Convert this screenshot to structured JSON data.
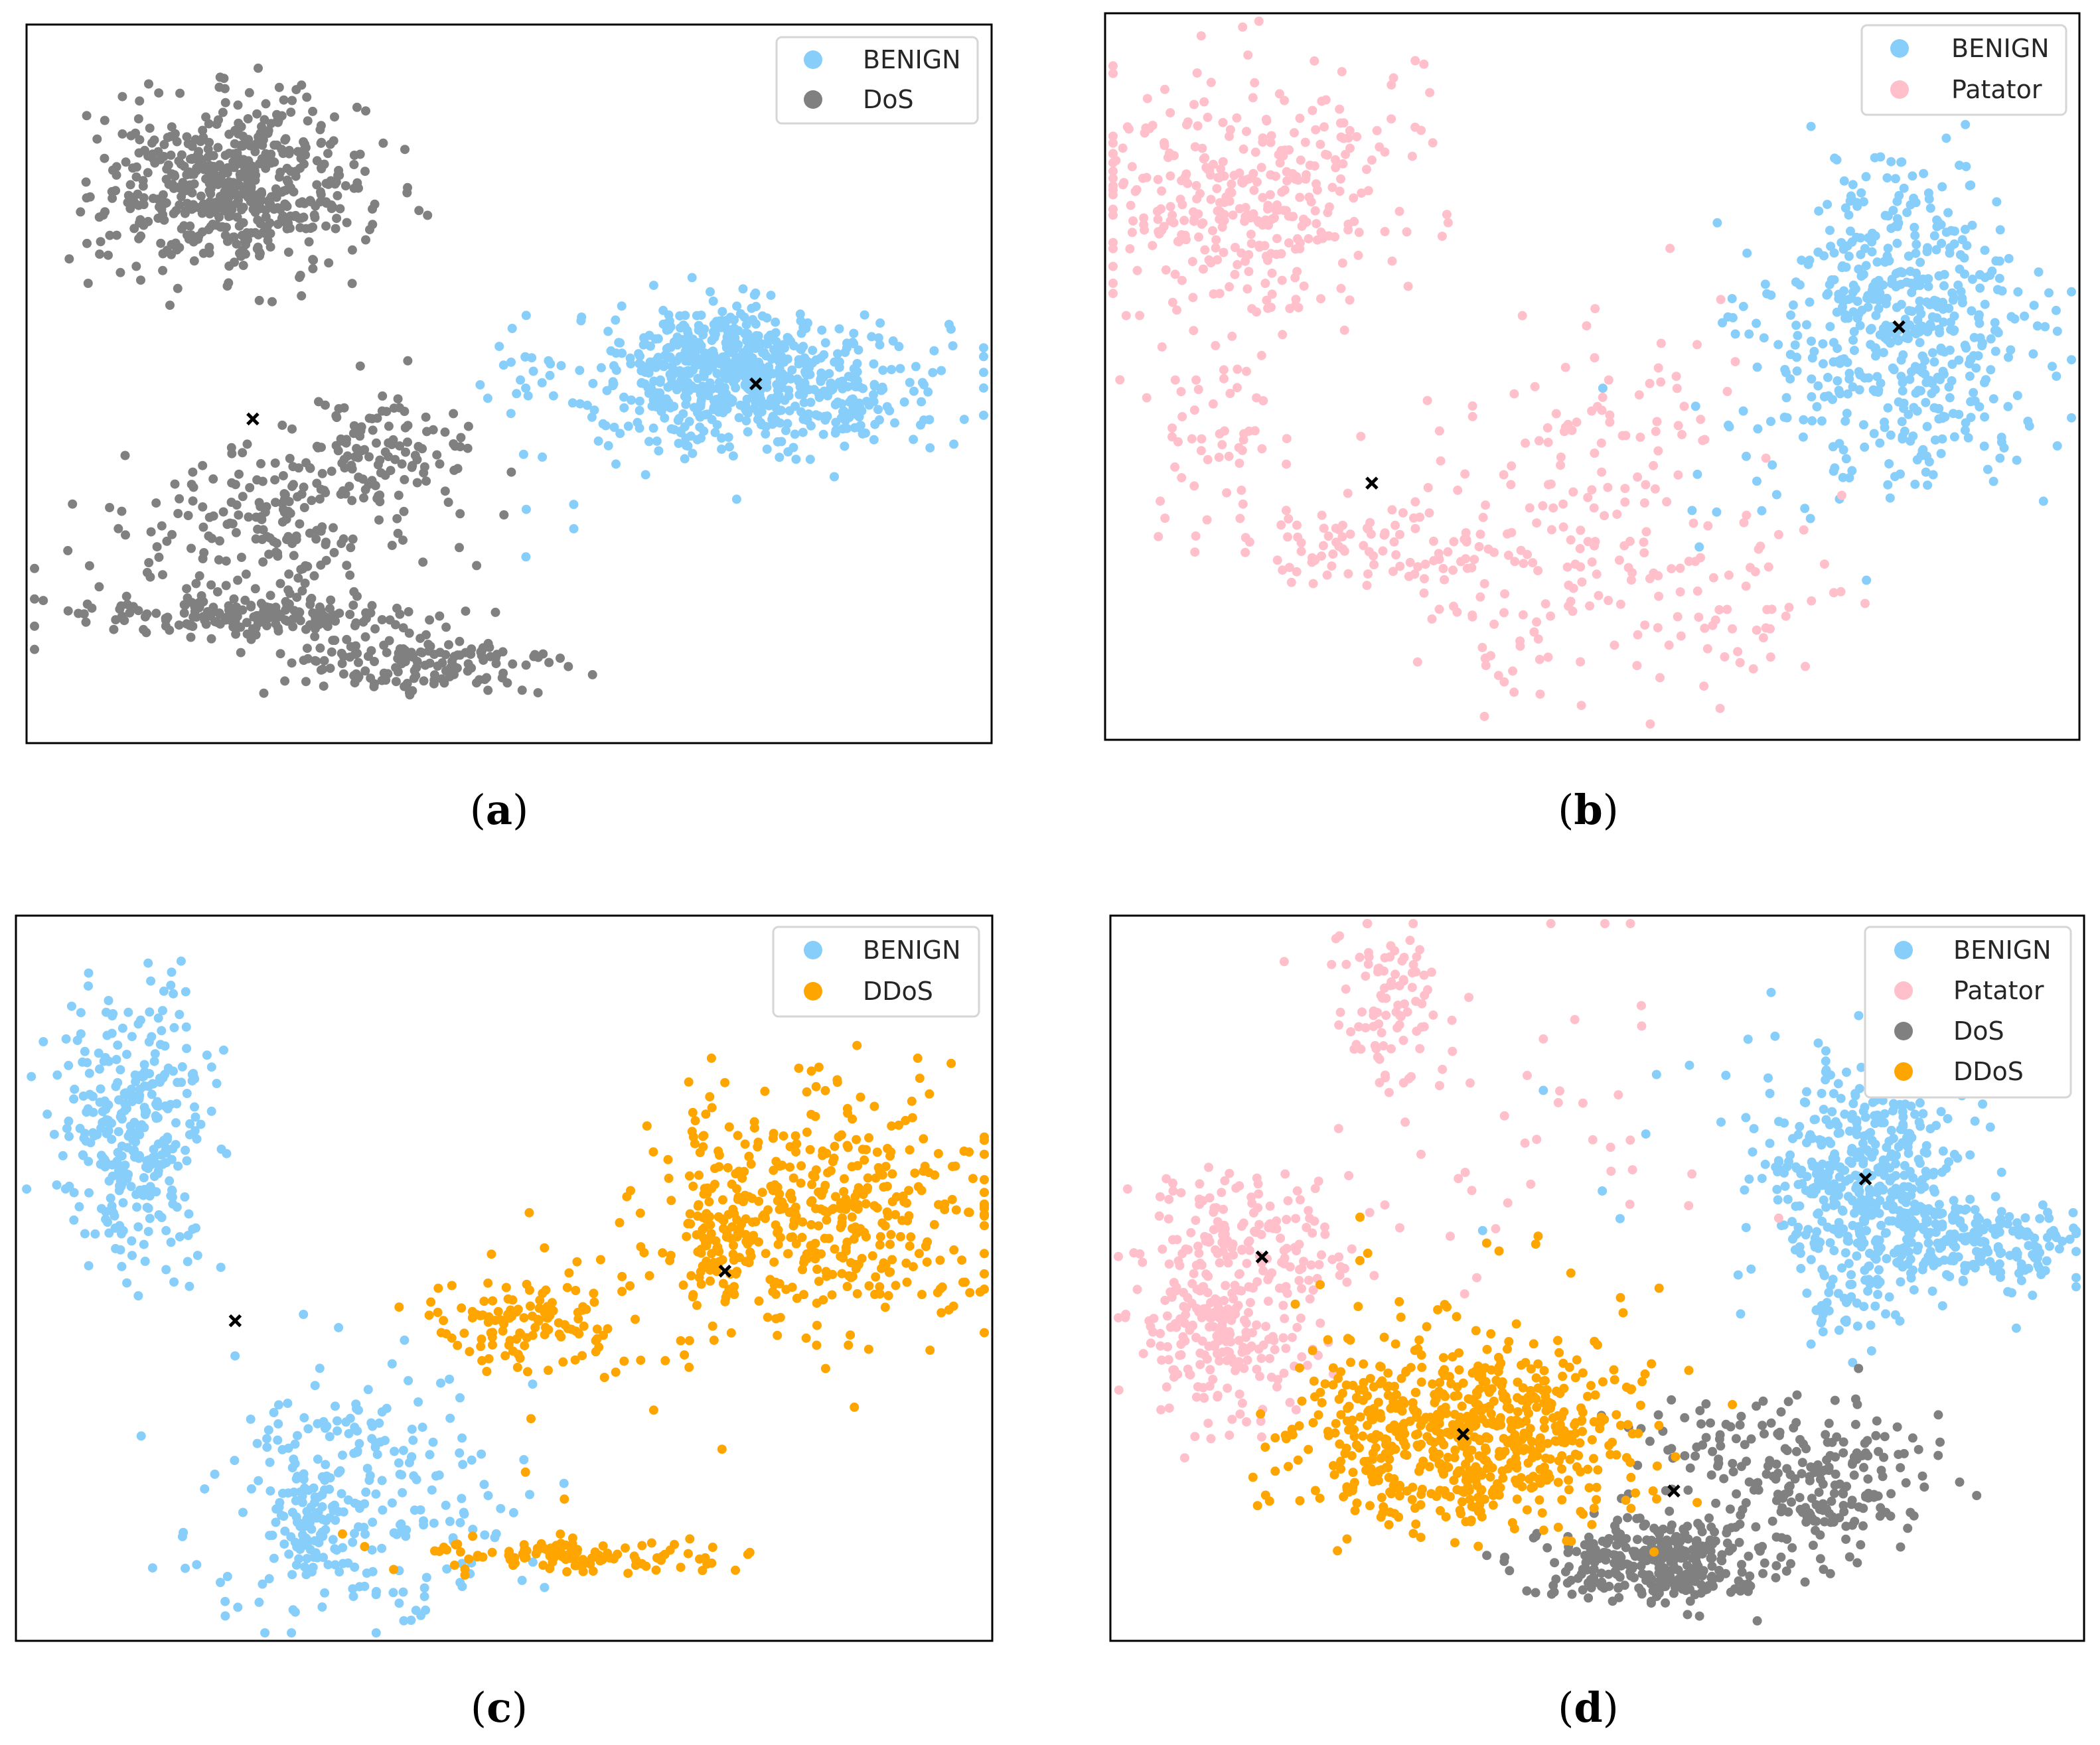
{
  "figure": {
    "marker_color": "#000000",
    "frame_color": "#000000"
  },
  "chart_data": [
    {
      "panel": "a",
      "caption": {
        "open": "(",
        "letter": "a",
        "close": ")"
      },
      "type": "scatter",
      "title": "",
      "xlabel": "",
      "ylabel": "",
      "xlim": [
        0,
        100
      ],
      "ylim": [
        0,
        100
      ],
      "legend_position": "top-right",
      "series": [
        {
          "name": "BENIGN",
          "color": "#87CEFA",
          "clusters": [
            {
              "cx": 76,
              "cy": 50,
              "sx": 10,
              "sy": 5,
              "n": 580
            },
            {
              "cx": 72,
              "cy": 55,
              "sx": 4,
              "sy": 3,
              "n": 160
            },
            {
              "cx": 54,
              "cy": 40,
              "sx": 4,
              "sy": 8,
              "n": 10
            }
          ]
        },
        {
          "name": "DoS",
          "color": "#808080",
          "clusters": [
            {
              "cx": 21,
              "cy": 78,
              "sx": 7,
              "sy": 6,
              "n": 560
            },
            {
              "cx": 36,
              "cy": 40,
              "sx": 5,
              "sy": 4,
              "n": 110
            },
            {
              "cx": 25,
              "cy": 29,
              "sx": 8,
              "sy": 6,
              "n": 200
            },
            {
              "cx": 22,
              "cy": 17,
              "sx": 10,
              "sy": 1.5,
              "n": 160
            },
            {
              "cx": 40,
              "cy": 10,
              "sx": 8,
              "sy": 2.5,
              "n": 150
            }
          ]
        }
      ],
      "centroids": [
        {
          "x": 23,
          "y": 45
        },
        {
          "x": 76,
          "y": 50
        }
      ]
    },
    {
      "panel": "b",
      "caption": {
        "open": "(",
        "letter": "b",
        "close": ")"
      },
      "type": "scatter",
      "title": "",
      "xlabel": "",
      "ylabel": "",
      "xlim": [
        0,
        100
      ],
      "ylim": [
        0,
        100
      ],
      "legend_position": "top-right",
      "series": [
        {
          "name": "BENIGN",
          "color": "#87CEFA",
          "clusters": [
            {
              "cx": 82,
              "cy": 57,
              "sx": 7,
              "sy": 11,
              "n": 540
            },
            {
              "cx": 72,
              "cy": 40,
              "sx": 10,
              "sy": 12,
              "n": 12
            }
          ]
        },
        {
          "name": "Patator",
          "color": "#FFC0CB",
          "clusters": [
            {
              "cx": 14,
              "cy": 76,
              "sx": 8,
              "sy": 9,
              "n": 360
            },
            {
              "cx": 27,
              "cy": 26,
              "sx": 8,
              "sy": 3,
              "n": 90
            },
            {
              "cx": 48,
              "cy": 38,
              "sx": 8,
              "sy": 10,
              "n": 110
            },
            {
              "cx": 52,
              "cy": 18,
              "sx": 12,
              "sy": 7,
              "n": 130
            },
            {
              "cx": 11,
              "cy": 42,
              "sx": 3,
              "sy": 6,
              "n": 50
            }
          ]
        }
      ],
      "centroids": [
        {
          "x": 27,
          "y": 35
        },
        {
          "x": 82,
          "y": 57
        }
      ]
    },
    {
      "panel": "c",
      "caption": {
        "open": "(",
        "letter": "c",
        "close": ")"
      },
      "type": "scatter",
      "title": "",
      "xlabel": "",
      "ylabel": "",
      "xlim": [
        0,
        100
      ],
      "ylim": [
        0,
        100
      ],
      "legend_position": "top-right",
      "series": [
        {
          "name": "BENIGN",
          "color": "#87CEFA",
          "clusters": [
            {
              "cx": 12,
              "cy": 71,
              "sx": 4,
              "sy": 9,
              "n": 330
            },
            {
              "cx": 35,
              "cy": 20,
              "sx": 8,
              "sy": 9,
              "n": 250
            },
            {
              "cx": 30,
              "cy": 16,
              "sx": 2,
              "sy": 4,
              "n": 60
            }
          ]
        },
        {
          "name": "DDoS",
          "color": "#FFA500",
          "clusters": [
            {
              "cx": 83,
              "cy": 59,
              "sx": 9,
              "sy": 8,
              "n": 440
            },
            {
              "cx": 52,
              "cy": 44,
              "sx": 5,
              "sy": 3,
              "n": 110
            },
            {
              "cx": 57,
              "cy": 11,
              "sx": 8,
              "sy": 1.2,
              "n": 110
            },
            {
              "cx": 72,
              "cy": 56,
              "sx": 1.5,
              "sy": 5,
              "n": 60
            },
            {
              "cx": 62,
              "cy": 38,
              "sx": 8,
              "sy": 12,
              "n": 30
            }
          ]
        }
      ],
      "centroids": [
        {
          "x": 22,
          "y": 44
        },
        {
          "x": 73,
          "y": 51
        }
      ]
    },
    {
      "panel": "d",
      "caption": {
        "open": "(",
        "letter": "d",
        "close": ")"
      },
      "type": "scatter",
      "title": "",
      "xlabel": "",
      "ylabel": "",
      "xlim": [
        0,
        100
      ],
      "ylim": [
        0,
        100
      ],
      "legend_position": "top-right",
      "series": [
        {
          "name": "BENIGN",
          "color": "#87CEFA",
          "clusters": [
            {
              "cx": 78,
              "cy": 64,
              "sx": 5,
              "sy": 8,
              "n": 420
            },
            {
              "cx": 88,
              "cy": 55,
              "sx": 6,
              "sy": 3,
              "n": 230
            },
            {
              "cx": 76,
              "cy": 46,
              "sx": 2,
              "sy": 3,
              "n": 30
            },
            {
              "cx": 62,
              "cy": 75,
              "sx": 12,
              "sy": 10,
              "n": 20
            }
          ]
        },
        {
          "name": "Patator",
          "color": "#FFC0CB",
          "clusters": [
            {
              "cx": 11,
              "cy": 43,
              "sx": 5,
              "sy": 7,
              "n": 260
            },
            {
              "cx": 28,
              "cy": 88,
              "sx": 3,
              "sy": 6,
              "n": 90
            },
            {
              "cx": 14,
              "cy": 57,
              "sx": 6,
              "sy": 4,
              "n": 110
            },
            {
              "cx": 40,
              "cy": 70,
              "sx": 12,
              "sy": 15,
              "n": 45
            }
          ]
        },
        {
          "name": "DoS",
          "color": "#808080",
          "clusters": [
            {
              "cx": 56,
              "cy": 10,
              "sx": 6,
              "sy": 3,
              "n": 320
            },
            {
              "cx": 73,
              "cy": 21,
              "sx": 6,
              "sy": 5,
              "n": 200
            },
            {
              "cx": 60,
              "cy": 27,
              "sx": 5,
              "sy": 4,
              "n": 35
            }
          ]
        },
        {
          "name": "DDoS",
          "color": "#FFA500",
          "clusters": [
            {
              "cx": 36,
              "cy": 28,
              "sx": 9,
              "sy": 6,
              "n": 620
            },
            {
              "cx": 36,
              "cy": 36,
              "sx": 12,
              "sy": 10,
              "n": 60
            }
          ]
        }
      ],
      "centroids": [
        {
          "x": 15,
          "y": 53
        },
        {
          "x": 36,
          "y": 28
        },
        {
          "x": 58,
          "y": 20
        },
        {
          "x": 78,
          "y": 64
        }
      ]
    }
  ]
}
